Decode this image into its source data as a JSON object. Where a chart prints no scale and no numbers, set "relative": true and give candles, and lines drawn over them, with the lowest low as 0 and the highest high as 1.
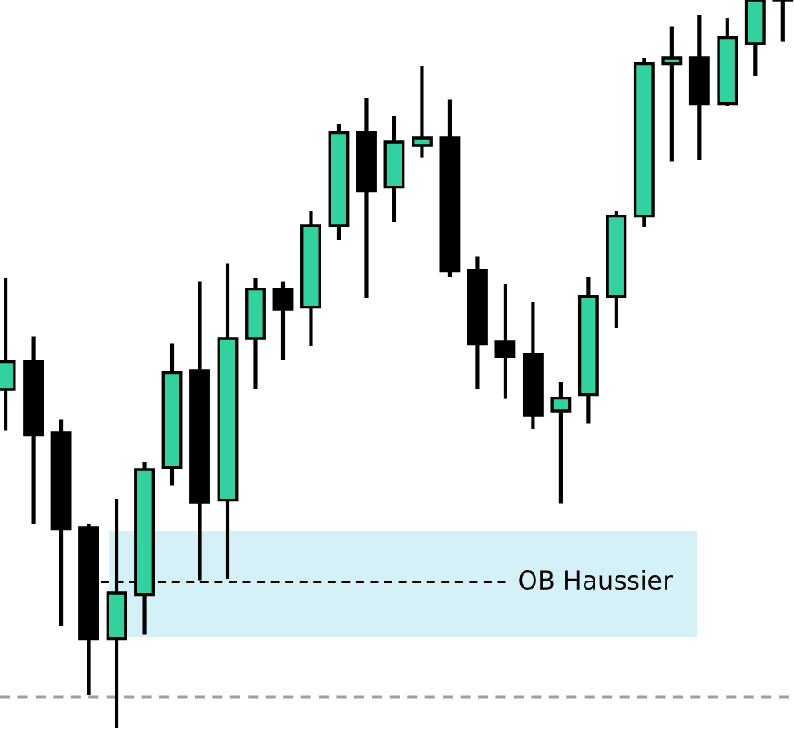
{
  "chart_data": {
    "type": "candlestick",
    "relative": true,
    "categories": [
      null,
      null,
      null,
      null,
      null,
      null,
      null,
      null,
      null,
      null,
      null,
      null,
      null,
      null,
      null,
      null,
      null,
      null,
      null,
      null,
      null,
      null,
      null,
      null,
      null,
      null,
      null,
      null,
      null
    ],
    "series": [
      {
        "colors": [
          "#33d1a0",
          "#000000",
          "#000000",
          "#000000",
          "#33d1a0",
          "#33d1a0",
          "#33d1a0",
          "#000000",
          "#33d1a0",
          "#33d1a0",
          "#000000",
          "#33d1a0",
          "#33d1a0",
          "#000000",
          "#33d1a0",
          "#33d1a0",
          "#000000",
          "#000000",
          "#000000",
          "#000000",
          "#33d1a0",
          "#33d1a0",
          "#33d1a0",
          "#33d1a0",
          "#33d1a0",
          "#000000",
          "#33d1a0",
          "#33d1a0",
          "#33d1a0"
        ],
        "ohlc": [
          [
            0.465,
            0.618,
            0.408,
            0.503
          ],
          [
            0.503,
            0.538,
            0.28,
            0.403
          ],
          [
            0.405,
            0.423,
            0.14,
            0.273
          ],
          [
            0.275,
            0.28,
            0.045,
            0.123
          ],
          [
            0.123,
            0.315,
            0,
            0.185
          ],
          [
            0.183,
            0.365,
            0.128,
            0.355
          ],
          [
            0.358,
            0.528,
            0.333,
            0.488
          ],
          [
            0.49,
            0.613,
            0.203,
            0.31
          ],
          [
            0.313,
            0.638,
            0.205,
            0.535
          ],
          [
            0.535,
            0.618,
            0.465,
            0.603
          ],
          [
            0.603,
            0.613,
            0.505,
            0.575
          ],
          [
            0.578,
            0.71,
            0.525,
            0.69
          ],
          [
            0.69,
            0.83,
            0.67,
            0.818
          ],
          [
            0.818,
            0.865,
            0.59,
            0.738
          ],
          [
            0.743,
            0.84,
            0.695,
            0.805
          ],
          [
            0.8,
            0.91,
            0.783,
            0.81
          ],
          [
            0.81,
            0.863,
            0.62,
            0.628
          ],
          [
            0.628,
            0.648,
            0.465,
            0.528
          ],
          [
            0.53,
            0.61,
            0.453,
            0.51
          ],
          [
            0.513,
            0.585,
            0.41,
            0.43
          ],
          [
            0.435,
            0.475,
            0.308,
            0.453
          ],
          [
            0.458,
            0.62,
            0.418,
            0.593
          ],
          [
            0.593,
            0.71,
            0.55,
            0.703
          ],
          [
            0.703,
            0.92,
            0.688,
            0.913
          ],
          [
            0.913,
            0.963,
            0.778,
            0.92
          ],
          [
            0.92,
            0.98,
            0.78,
            0.858
          ],
          [
            0.858,
            0.975,
            0.855,
            0.948
          ],
          [
            0.94,
            1,
            0.895,
            1
          ],
          [
            1,
            1,
            0.943,
            1
          ]
        ]
      }
    ],
    "bands": [
      {
        "axis": "y",
        "from": 0.125,
        "to": 0.27,
        "color": "#d4f1f7"
      }
    ],
    "ref_lines": [
      {
        "axis": "y",
        "value": 0.2,
        "label": "OB Haussier",
        "color": "#000000",
        "line_style": "dashed"
      },
      {
        "axis": "y",
        "value": 0.0425,
        "color": "#a0a0a0",
        "line_style": "dashed"
      }
    ]
  }
}
